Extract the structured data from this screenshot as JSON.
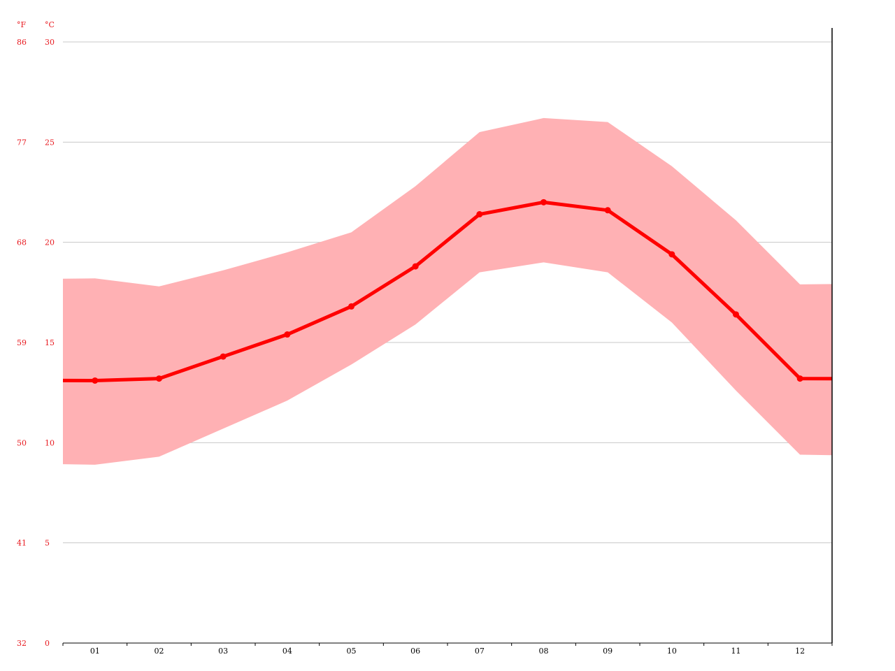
{
  "chart_data": {
    "type": "line",
    "units": {
      "fahrenheit": "°F",
      "celsius": "°C"
    },
    "y_ticks_c": [
      "0",
      "5",
      "10",
      "15",
      "20",
      "25",
      "30"
    ],
    "y_ticks_f": [
      "32",
      "41",
      "50",
      "59",
      "68",
      "77",
      "86"
    ],
    "ylim": [
      0,
      30
    ],
    "categories": [
      "01",
      "02",
      "03",
      "04",
      "05",
      "06",
      "07",
      "08",
      "09",
      "10",
      "11",
      "12"
    ],
    "series": [
      {
        "role": "average",
        "values": [
          13.1,
          13.2,
          14.3,
          15.4,
          16.8,
          18.8,
          21.4,
          22.0,
          21.6,
          19.4,
          16.4,
          13.2
        ]
      },
      {
        "role": "max",
        "values": [
          18.2,
          17.8,
          18.6,
          19.5,
          20.5,
          22.8,
          25.5,
          26.2,
          26.0,
          23.8,
          21.1,
          17.9
        ]
      },
      {
        "role": "min",
        "values": [
          8.9,
          9.3,
          10.7,
          12.1,
          13.9,
          15.9,
          18.5,
          19.0,
          18.5,
          16.0,
          12.6,
          9.4
        ]
      }
    ],
    "colors": {
      "line": "#ff0000",
      "band": "#ffb1b4",
      "grid": "#c8c8c8",
      "axis_text": "#e8191f"
    },
    "grid": true
  }
}
